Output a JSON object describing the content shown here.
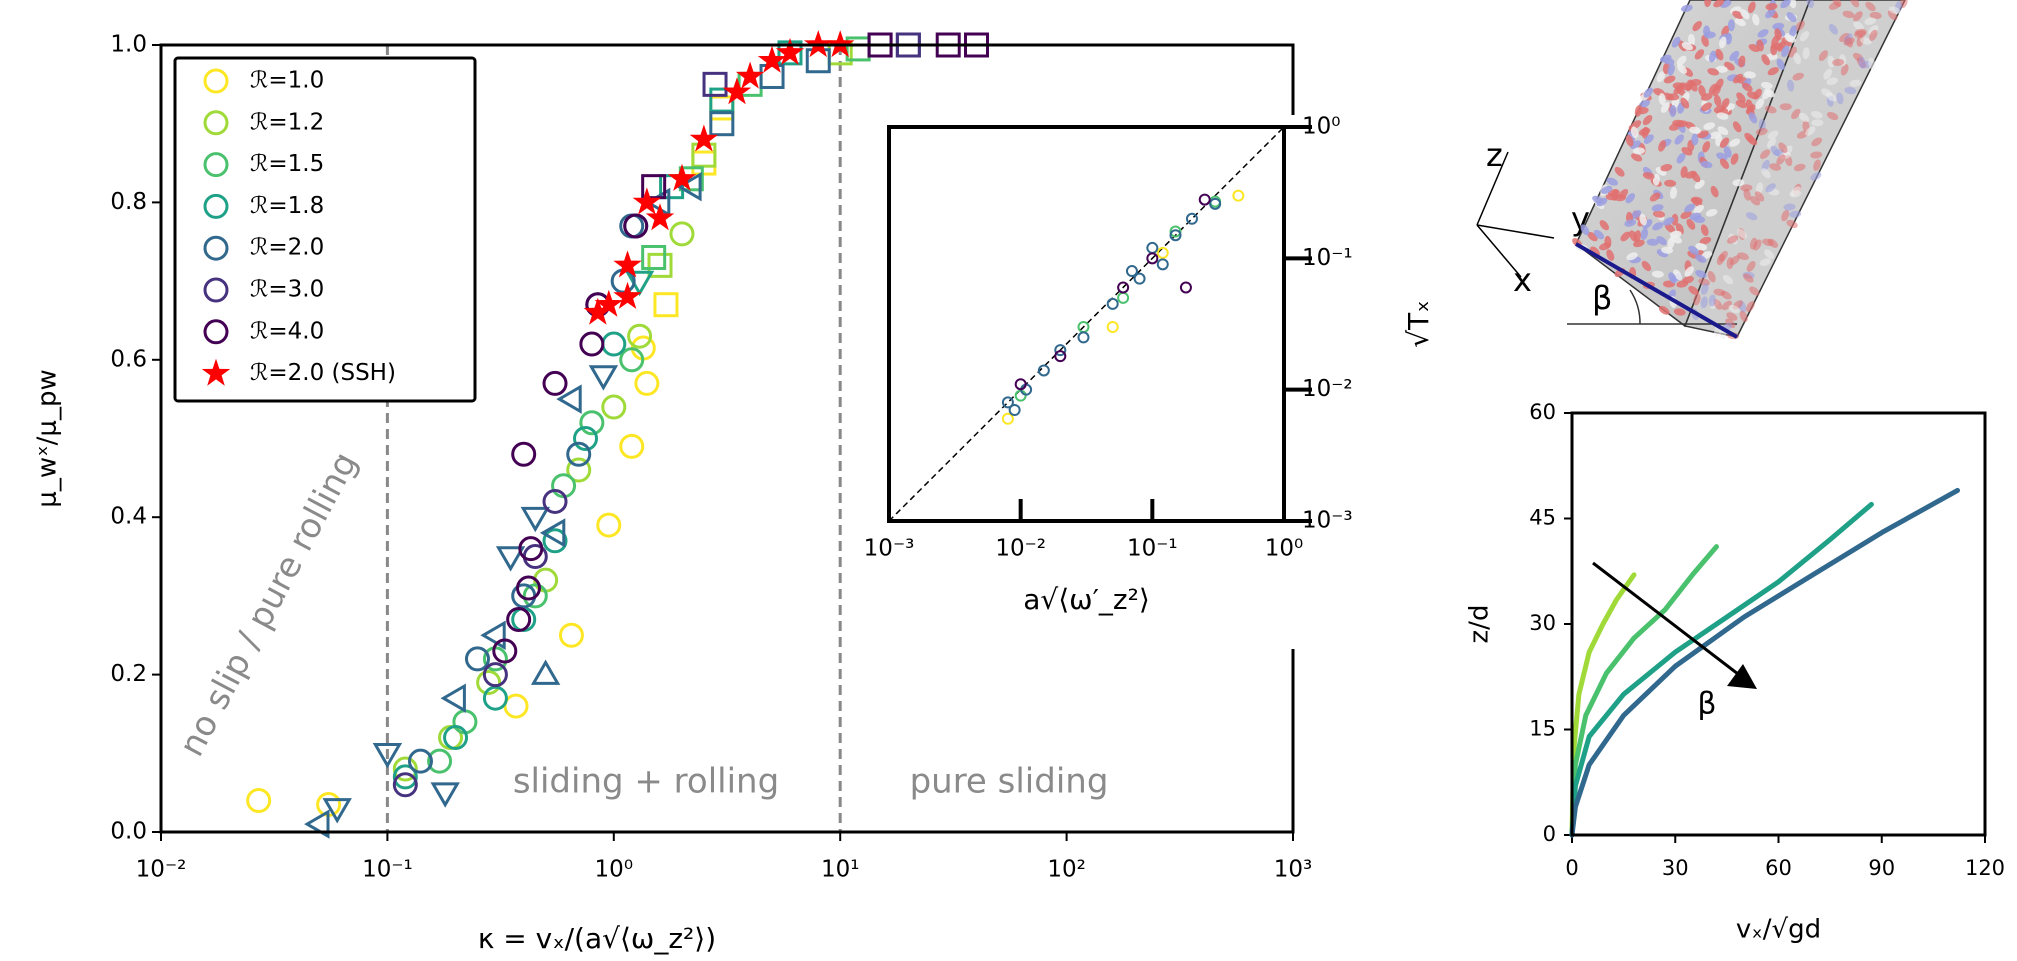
{
  "chart_data": [
    {
      "type": "scatter",
      "xscale": "log",
      "xlabel": "κ = vₓ/(a√⟨ω_z²⟩)",
      "ylabel": "μ_wˣ/μ_pw",
      "xlim": [
        0.01,
        1000
      ],
      "ylim": [
        0,
        1
      ],
      "xticks": [
        {
          "value": 0.01,
          "label": "10⁻²"
        },
        {
          "value": 0.1,
          "label": "10⁻¹"
        },
        {
          "value": 1,
          "label": "10⁰"
        },
        {
          "value": 10,
          "label": "10¹"
        },
        {
          "value": 100,
          "label": "10²"
        },
        {
          "value": 1000,
          "label": "10³"
        }
      ],
      "yticks": [
        {
          "value": 0,
          "label": "0.0"
        },
        0.2,
        0.4,
        0.6,
        0.8,
        {
          "value": 1,
          "label": "1.0"
        }
      ],
      "vlines": [
        0.1,
        10
      ],
      "legend": "upper left",
      "annotations": [
        "no slip / pure rolling",
        "sliding + rolling",
        "pure sliding"
      ],
      "series": [
        {
          "name": "ℛ=1.0",
          "color": "#fde725",
          "marker": "circle",
          "x": [
            0.027,
            0.055,
            0.37,
            0.65,
            0.95,
            1.2,
            1.4,
            1.35,
            1.7,
            2.5,
            3.0
          ],
          "values": [
            0.04,
            0.035,
            0.16,
            0.25,
            0.39,
            0.49,
            0.57,
            0.615,
            0.67,
            0.85,
            0.92
          ],
          "markers": [
            "circle",
            "circle",
            "circle",
            "circle",
            "circle",
            "circle",
            "circle",
            "circle",
            "square",
            "square",
            "square"
          ]
        },
        {
          "name": "ℛ=1.2",
          "color": "#a0da39",
          "marker": "circle",
          "x": [
            0.12,
            0.19,
            0.28,
            0.5,
            0.7,
            1.0,
            1.3,
            1.6,
            2.0,
            2.5,
            10
          ],
          "values": [
            0.08,
            0.12,
            0.19,
            0.32,
            0.46,
            0.54,
            0.63,
            0.72,
            0.76,
            0.86,
            0.99
          ],
          "markers": [
            "circle",
            "circle",
            "circle",
            "circle",
            "circle",
            "circle",
            "circle",
            "square",
            "circle",
            "square",
            "square"
          ]
        },
        {
          "name": "ℛ=1.5",
          "color": "#4ac16d",
          "marker": "circle",
          "x": [
            0.17,
            0.22,
            0.3,
            0.45,
            0.6,
            0.8,
            1.2,
            1.5,
            2.2,
            4,
            12
          ],
          "values": [
            0.09,
            0.14,
            0.22,
            0.3,
            0.44,
            0.52,
            0.6,
            0.73,
            0.83,
            0.95,
            0.995
          ],
          "markers": [
            "circle",
            "circle",
            "circle",
            "circle",
            "circle",
            "circle",
            "circle",
            "square",
            "square",
            "square",
            "square"
          ]
        },
        {
          "name": "ℛ=1.8",
          "color": "#1fa187",
          "marker": "circle",
          "x": [
            0.12,
            0.2,
            0.3,
            0.4,
            0.55,
            0.75,
            1.0,
            1.3,
            1.8,
            3,
            6
          ],
          "values": [
            0.07,
            0.12,
            0.17,
            0.27,
            0.37,
            0.5,
            0.62,
            0.7,
            0.82,
            0.93,
            0.99
          ],
          "markers": [
            "circle",
            "circle",
            "circle",
            "circle",
            "circle",
            "circle",
            "circle",
            "triangle-down",
            "square",
            "square",
            "square"
          ]
        },
        {
          "name": "ℛ=2.0",
          "color": "#31688e",
          "marker": "circle",
          "x": [
            0.05,
            0.06,
            0.1,
            0.14,
            0.2,
            0.25,
            0.35,
            0.4,
            0.55,
            0.7,
            0.9,
            1.1,
            1.2,
            1.6,
            2.2,
            3,
            5,
            8,
            20,
            0.3,
            0.5,
            0.45,
            0.65,
            0.18
          ],
          "values": [
            0.01,
            0.03,
            0.1,
            0.09,
            0.17,
            0.22,
            0.35,
            0.3,
            0.38,
            0.48,
            0.58,
            0.7,
            0.77,
            0.8,
            0.82,
            0.9,
            0.96,
            0.98,
            1.0,
            0.25,
            0.2,
            0.4,
            0.55,
            0.05
          ],
          "markers": [
            "triangle-left",
            "triangle-down",
            "triangle-down",
            "circle",
            "triangle-left",
            "circle",
            "triangle-down",
            "circle",
            "triangle-left",
            "circle",
            "triangle-down",
            "circle",
            "circle",
            "triangle-left",
            "triangle-left",
            "square",
            "square",
            "square",
            "square",
            "triangle-left",
            "triangle-up",
            "triangle-down",
            "triangle-left",
            "triangle-down"
          ]
        },
        {
          "name": "ℛ=3.0",
          "color": "#46327e",
          "marker": "circle",
          "x": [
            0.12,
            0.3,
            0.45,
            0.55,
            0.85,
            1.25,
            2.8,
            15,
            20
          ],
          "values": [
            0.06,
            0.2,
            0.35,
            0.42,
            0.67,
            0.77,
            0.95,
            1.0,
            1.0
          ],
          "markers": [
            "circle",
            "circle",
            "circle",
            "circle",
            "circle",
            "circle",
            "square",
            "square",
            "square"
          ]
        },
        {
          "name": "ℛ=4.0",
          "color": "#440154",
          "marker": "circle",
          "x": [
            0.33,
            0.38,
            0.42,
            0.43,
            0.4,
            0.55,
            0.8,
            0.85,
            1.25,
            1.5,
            15,
            30,
            40
          ],
          "values": [
            0.23,
            0.27,
            0.31,
            0.36,
            0.48,
            0.57,
            0.62,
            0.67,
            0.77,
            0.82,
            1.0,
            1.0,
            1.0
          ],
          "markers": [
            "circle",
            "circle",
            "circle",
            "circle",
            "circle",
            "circle",
            "circle",
            "circle",
            "circle",
            "square",
            "square",
            "square",
            "square"
          ]
        },
        {
          "name": "ℛ=2.0 (SSH)",
          "color": "#ff0000",
          "marker": "star",
          "x": [
            0.85,
            0.95,
            1.15,
            1.15,
            1.6,
            1.4,
            2.0,
            2.5,
            3.5,
            4,
            5,
            6,
            8,
            10
          ],
          "values": [
            0.66,
            0.67,
            0.68,
            0.72,
            0.78,
            0.8,
            0.83,
            0.88,
            0.94,
            0.96,
            0.98,
            0.99,
            1.0,
            1.0
          ]
        }
      ]
    },
    {
      "type": "scatter",
      "xscale": "log",
      "yscale": "log",
      "xlabel": "a√⟨ω′_z²⟩",
      "ylabel": "√Tₓ",
      "xlim": [
        0.001,
        1
      ],
      "ylim": [
        0.001,
        1
      ],
      "diagonal": true,
      "xticks": [
        {
          "value": 0.001,
          "label": "10⁻³"
        },
        {
          "value": 0.01,
          "label": "10⁻²"
        },
        {
          "value": 0.1,
          "label": "10⁻¹"
        },
        {
          "value": 1,
          "label": "10⁰"
        }
      ],
      "yticks": [
        {
          "value": 0.001,
          "label": "10⁻³"
        },
        {
          "value": 0.01,
          "label": "10⁻²"
        },
        {
          "value": 0.1,
          "label": "10⁻¹"
        },
        {
          "value": 1,
          "label": "10⁰"
        }
      ],
      "series": [
        {
          "color": "#fde725",
          "x": [
            0.008,
            0.05,
            0.12,
            0.45
          ],
          "values": [
            0.006,
            0.03,
            0.11,
            0.3
          ]
        },
        {
          "color": "#4ac16d",
          "x": [
            0.01,
            0.03,
            0.06,
            0.15,
            0.3
          ],
          "values": [
            0.009,
            0.03,
            0.05,
            0.16,
            0.27
          ]
        },
        {
          "color": "#31688e",
          "x": [
            0.008,
            0.011,
            0.015,
            0.02,
            0.03,
            0.05,
            0.08,
            0.1,
            0.15,
            0.2,
            0.3,
            0.12,
            0.07,
            0.009
          ],
          "values": [
            0.008,
            0.01,
            0.014,
            0.02,
            0.025,
            0.045,
            0.07,
            0.12,
            0.15,
            0.2,
            0.26,
            0.09,
            0.08,
            0.007
          ]
        },
        {
          "color": "#440154",
          "x": [
            0.01,
            0.02,
            0.06,
            0.1,
            0.18,
            0.25
          ],
          "values": [
            0.011,
            0.018,
            0.06,
            0.1,
            0.06,
            0.28
          ]
        }
      ]
    },
    {
      "type": "line",
      "xlabel": "vₓ/√gd",
      "ylabel": "z/d",
      "xlim": [
        0,
        120
      ],
      "ylim": [
        0,
        60
      ],
      "xticks": [
        0,
        30,
        60,
        90,
        120
      ],
      "yticks": [
        0,
        15,
        30,
        45,
        60
      ],
      "annotations": [
        "β"
      ],
      "series": [
        {
          "color": "#a0da39",
          "x": [
            0,
            0.5,
            2,
            5,
            9,
            13,
            18
          ],
          "values": [
            0,
            12,
            20,
            26,
            30,
            33.5,
            37
          ]
        },
        {
          "color": "#4ac16d",
          "x": [
            0,
            1,
            4,
            10,
            18,
            27,
            35,
            42
          ],
          "values": [
            0,
            10,
            17,
            23,
            28,
            32,
            37,
            41
          ]
        },
        {
          "color": "#1fa187",
          "x": [
            0,
            1,
            5,
            15,
            30,
            45,
            60,
            75,
            87
          ],
          "values": [
            0,
            7,
            14,
            20,
            26,
            31,
            36,
            42,
            47
          ]
        },
        {
          "color": "#31688e",
          "x": [
            0,
            1,
            5,
            15,
            30,
            50,
            70,
            90,
            112
          ],
          "values": [
            0,
            4,
            10,
            17,
            24,
            31,
            37,
            43,
            49
          ]
        }
      ]
    }
  ],
  "illustration": {
    "axis_labels": [
      "z",
      "y",
      "x"
    ],
    "angle_label": "β"
  }
}
